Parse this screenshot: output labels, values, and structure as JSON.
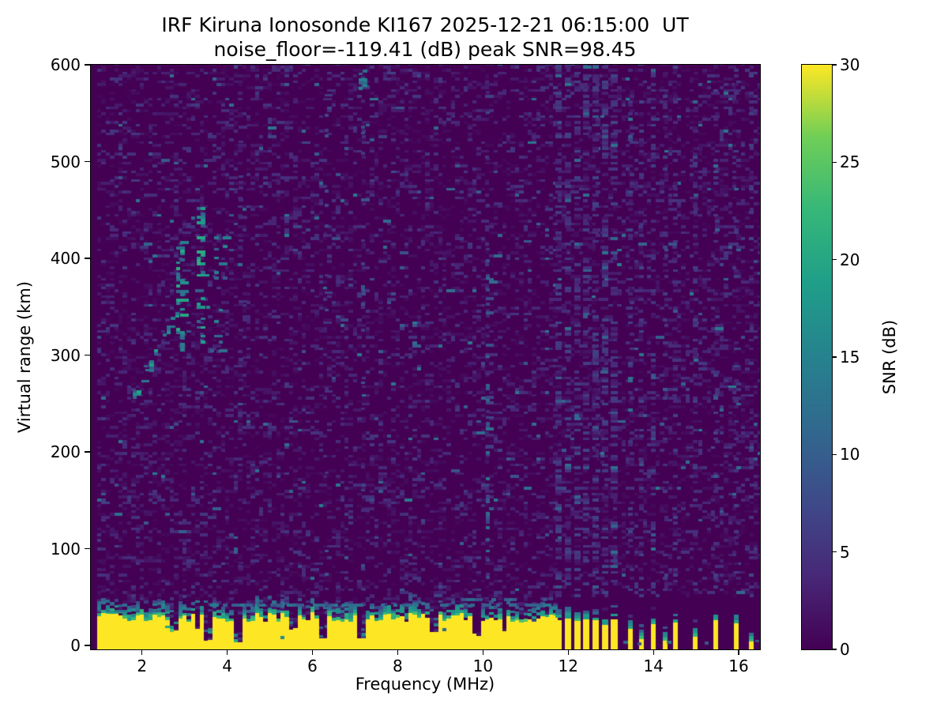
{
  "chart_data": {
    "type": "heatmap",
    "title": "IRF Kiruna Ionosonde KI167 2025-12-21 06:15:00  UT",
    "subtitle": "noise_floor=-119.41 (dB) peak SNR=98.45",
    "station": "KI167",
    "timestamp_ut": "2025-12-21 06:15:00",
    "noise_floor_db": -119.41,
    "peak_snr_db": 98.45,
    "xlabel": "Frequency (MHz)",
    "ylabel": "Virtual range (km)",
    "xlim": [
      0.8,
      16.5
    ],
    "ylim": [
      -4,
      600
    ],
    "xticks": [
      2,
      4,
      6,
      8,
      10,
      12,
      14,
      16
    ],
    "yticks": [
      0,
      100,
      200,
      300,
      400,
      500,
      600
    ],
    "colorbar": {
      "label": "SNR (dB)",
      "min": 0,
      "max": 30,
      "ticks": [
        0,
        5,
        10,
        15,
        20,
        25,
        30
      ]
    },
    "colormap": {
      "name": "viridis",
      "stops": [
        [
          0.0,
          "#440154"
        ],
        [
          0.125,
          "#482878"
        ],
        [
          0.25,
          "#3e4a89"
        ],
        [
          0.375,
          "#31688e"
        ],
        [
          0.5,
          "#26828e"
        ],
        [
          0.625,
          "#1f9e89"
        ],
        [
          0.75,
          "#35b779"
        ],
        [
          0.875,
          "#6ece58"
        ],
        [
          1.0,
          "#fde725"
        ]
      ]
    },
    "grid": {
      "f_start": 0.95,
      "f_end": 16.5,
      "df": 0.1,
      "km_min": -4,
      "km_max": 600,
      "km_step": 3
    },
    "features": {
      "blank_band": {
        "f0": 0.8,
        "f1": 0.95
      },
      "noise": {
        "dash_prob": 0.45,
        "max_snr": 5.5,
        "teal_prob": 0.012,
        "teal_snr": [
          6,
          14
        ]
      },
      "dotted_columns": [
        {
          "f": 4.27,
          "p": 0.08,
          "snr": [
            2,
            6
          ],
          "km": [
            0,
            600
          ]
        },
        {
          "f": 6.28,
          "p": 0.13,
          "snr": [
            2.5,
            9
          ],
          "km": [
            0,
            600
          ]
        },
        {
          "f": 7.14,
          "p": 0.13,
          "snr": [
            2.5,
            9
          ],
          "km": [
            0,
            600
          ]
        },
        {
          "f": 10.06,
          "p": 0.13,
          "snr": [
            3,
            9
          ],
          "km": [
            0,
            600
          ]
        },
        {
          "f": 10.06,
          "p": 0.22,
          "snr": [
            5,
            13
          ],
          "km": [
            90,
            390
          ]
        }
      ],
      "echo_trace": {
        "diagonal": [
          {
            "f": [
              1.78,
              2.88
            ],
            "km": [
              256,
              348
            ],
            "spread": 10,
            "p": 0.55,
            "snr": [
              8,
              20
            ]
          }
        ],
        "bands": [
          {
            "f": [
              2.8,
              2.97
            ],
            "km": [
              298,
              418
            ],
            "p": 0.38,
            "snr": [
              9,
              22
            ]
          },
          {
            "f": [
              3.28,
              3.47
            ],
            "km": [
              306,
              458
            ],
            "p": 0.3,
            "snr": [
              9,
              22
            ]
          },
          {
            "f": [
              3.5,
              3.95
            ],
            "km": [
              300,
              430
            ],
            "p": 0.1,
            "snr": [
              8,
              16
            ]
          }
        ]
      },
      "spot": {
        "f": [
          7.08,
          7.22
        ],
        "km": [
          574,
          598
        ],
        "p": 0.65,
        "snr": [
          10,
          16
        ]
      },
      "ground_clutter": {
        "f0": 0.95,
        "f1": 11.66,
        "top_km_base": 24,
        "top_km_jitter": 10,
        "fringe_rows": 8,
        "notches": [
          [
            2.72,
            0.1,
            14
          ],
          [
            3.3,
            0.08,
            16
          ],
          [
            3.56,
            0.14,
            4
          ],
          [
            4.25,
            0.12,
            3
          ],
          [
            5.52,
            0.08,
            16
          ],
          [
            6.28,
            0.12,
            6
          ],
          [
            7.16,
            0.12,
            5
          ],
          [
            8.84,
            0.1,
            12
          ],
          [
            9.84,
            0.1,
            10
          ],
          [
            10.5,
            0.1,
            12
          ]
        ]
      },
      "fringe_lines": [
        {
          "f": [
            3.6,
            11.66
          ],
          "km": 40,
          "p": 0.5,
          "snr": [
            9,
            14
          ]
        },
        {
          "f": [
            8.9,
            11.66
          ],
          "km": 46,
          "p": 0.35,
          "snr": [
            8,
            12
          ]
        },
        {
          "f": [
            0.95,
            3.6
          ],
          "km": 34,
          "p": 0.35,
          "snr": [
            9,
            13
          ]
        }
      ],
      "rfi": {
        "region": {
          "f0": 11.66,
          "f1": 16.5,
          "clear_below_km": 48
        },
        "striped_until": 13.2,
        "bars": [
          [
            11.78,
            26,
            0.15
          ],
          [
            12.0,
            28,
            0.15
          ],
          [
            12.21,
            25,
            0.15
          ],
          [
            12.43,
            27,
            0.15
          ],
          [
            12.65,
            26,
            0.15
          ],
          [
            12.87,
            21,
            0.15
          ],
          [
            13.08,
            27,
            0.15
          ],
          [
            13.46,
            17,
            0.11
          ],
          [
            13.72,
            7,
            0.11
          ],
          [
            14.0,
            22,
            0.11
          ],
          [
            14.28,
            5,
            0.11
          ],
          [
            14.52,
            24,
            0.11
          ],
          [
            14.98,
            9,
            0.11
          ],
          [
            15.47,
            26,
            0.11
          ],
          [
            15.95,
            23,
            0.11
          ],
          [
            16.3,
            4,
            0.11
          ]
        ],
        "columns_p_striped": 0.38,
        "columns_p_isolated": 0.22,
        "column_snr": [
          1.5,
          7
        ],
        "bottom_specks": [
          {
            "f": 13.3,
            "km": 2,
            "snr": 11
          },
          {
            "f": 13.62,
            "km": 0,
            "snr": 9
          },
          {
            "f": 14.32,
            "km": 2,
            "snr": 12
          },
          {
            "f": 15.2,
            "km": 1,
            "snr": 9
          },
          {
            "f": 16.38,
            "km": 3,
            "snr": 8
          }
        ]
      }
    }
  }
}
